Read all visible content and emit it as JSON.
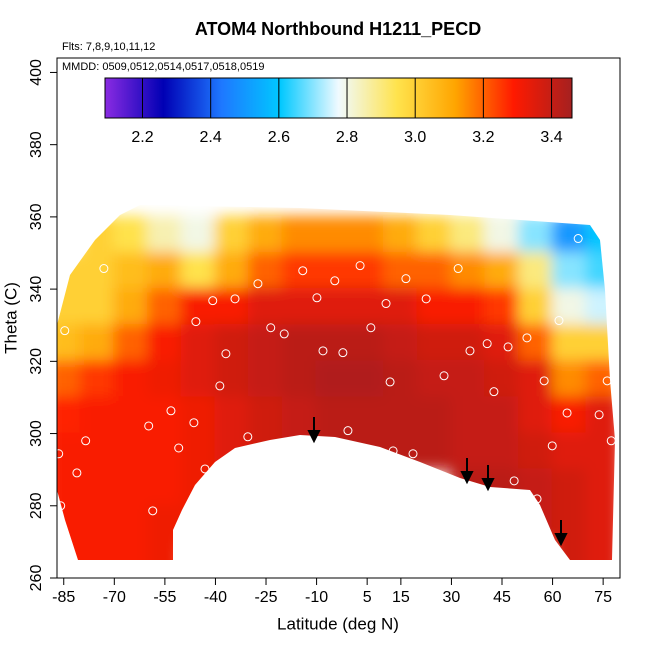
{
  "chart_data": {
    "type": "contour",
    "title": "ATOM4 Northbound H1211_PECD",
    "annotations": [
      "Flts: 7,8,9,10,11,12",
      "MMDD: 0509,0512,0514,0517,0518,0519"
    ],
    "x_label": "Latitude (deg N)",
    "y_label": "Theta (C)",
    "xlim": [
      -87,
      80
    ],
    "ylim": [
      260,
      404
    ],
    "xticks": [
      -85,
      -70,
      -55,
      -40,
      -25,
      -10,
      5,
      15,
      30,
      45,
      60,
      75
    ],
    "yticks": [
      260,
      280,
      300,
      320,
      340,
      360,
      380,
      400
    ],
    "clim": [
      2.09,
      3.46
    ],
    "cticks": [
      2.2,
      2.4,
      2.6,
      2.8,
      {
        "value": 3.0,
        "label": "3.0"
      },
      3.2,
      3.4
    ],
    "colormap": [
      "#8a2be2",
      "#0000b4",
      "#1e78ff",
      "#00c8ff",
      "#f0faff",
      "#ffe34d",
      "#ffa500",
      "#ff1a00",
      "#a52020"
    ],
    "field": {
      "lat": [
        -85,
        -75,
        -65,
        -55,
        -45,
        -35,
        -25,
        -15,
        -5,
        5,
        15,
        25,
        35,
        45,
        55,
        65,
        75
      ],
      "theta": [
        355,
        345,
        335,
        325,
        315,
        305,
        295,
        285,
        275,
        265
      ],
      "z": [
        [
          null,
          3.0,
          2.95,
          2.85,
          2.8,
          3.0,
          3.1,
          3.15,
          3.15,
          3.15,
          3.1,
          3.0,
          2.9,
          2.8,
          2.7,
          2.5,
          2.6
        ],
        [
          3.0,
          3.0,
          3.05,
          3.1,
          2.95,
          3.1,
          3.2,
          3.25,
          3.25,
          3.25,
          3.2,
          3.2,
          3.15,
          3.1,
          2.9,
          2.7,
          2.65
        ],
        [
          3.0,
          3.0,
          3.1,
          3.2,
          3.3,
          3.3,
          3.35,
          3.35,
          3.35,
          3.35,
          3.35,
          3.3,
          3.3,
          3.25,
          3.0,
          2.8,
          2.75
        ],
        [
          3.05,
          3.1,
          3.2,
          3.3,
          3.35,
          3.38,
          3.4,
          3.42,
          3.42,
          3.42,
          3.4,
          3.38,
          3.38,
          3.35,
          3.2,
          3.0,
          3.0
        ],
        [
          3.2,
          3.25,
          3.3,
          3.32,
          3.35,
          3.38,
          3.4,
          3.42,
          3.44,
          3.44,
          3.42,
          3.4,
          3.4,
          3.38,
          3.35,
          3.15,
          3.2
        ],
        [
          3.28,
          3.3,
          3.3,
          3.3,
          3.32,
          3.35,
          3.38,
          3.4,
          3.42,
          3.42,
          3.42,
          3.42,
          3.4,
          3.4,
          3.35,
          3.3,
          3.35
        ],
        [
          3.3,
          3.3,
          3.3,
          3.3,
          3.32,
          3.35,
          3.38,
          3.4,
          3.42,
          3.42,
          3.42,
          3.42,
          3.4,
          3.4,
          3.38,
          3.35,
          3.35
        ],
        [
          3.3,
          3.3,
          3.3,
          3.3,
          3.32,
          3.35,
          null,
          null,
          null,
          null,
          null,
          null,
          3.42,
          3.42,
          3.4,
          3.38,
          3.35
        ],
        [
          3.3,
          3.3,
          3.3,
          3.32,
          3.32,
          null,
          null,
          null,
          null,
          null,
          null,
          null,
          null,
          null,
          3.4,
          3.38,
          3.35
        ],
        [
          3.3,
          3.3,
          3.3,
          3.32,
          null,
          null,
          null,
          null,
          null,
          null,
          null,
          null,
          null,
          null,
          null,
          3.38,
          3.35
        ]
      ]
    },
    "points": {
      "x": [
        -86.5,
        -85.9,
        -84.7,
        -81.1,
        -78.5,
        -73.1,
        -59.8,
        -58.6,
        -53.2,
        -50.9,
        -46.4,
        -45.8,
        -43.1,
        -40.8,
        -38.7,
        -36.9,
        -34.2,
        -30.4,
        -27.4,
        -23.6,
        -19.6,
        -17.6,
        -14.1,
        -9.9,
        -8.1,
        -4.6,
        -2.2,
        -0.7,
        2.9,
        6.1,
        10.6,
        11.8,
        12.7,
        16.5,
        18.6,
        22.5,
        27.8,
        32.0,
        35.5,
        40.6,
        42.6,
        46.8,
        48.6,
        52.4,
        55.4,
        57.5,
        59.9,
        61.9,
        64.3,
        67.6,
        73.8,
        76.2,
        77.4
      ],
      "y": [
        294.4,
        280.0,
        328.5,
        289.1,
        298.0,
        345.7,
        302.1,
        278.6,
        306.3,
        296.0,
        303.0,
        331.0,
        290.2,
        336.8,
        313.2,
        322.1,
        337.3,
        299.1,
        341.5,
        329.3,
        327.6,
        297.4,
        345.1,
        337.6,
        322.9,
        342.3,
        322.4,
        300.8,
        346.5,
        329.3,
        336.0,
        314.3,
        295.2,
        342.9,
        294.4,
        337.3,
        316.0,
        345.7,
        322.9,
        324.9,
        311.6,
        324.0,
        286.9,
        326.5,
        281.9,
        314.6,
        296.6,
        331.3,
        305.7,
        354.0,
        305.2,
        314.6,
        298.0
      ]
    }
  }
}
